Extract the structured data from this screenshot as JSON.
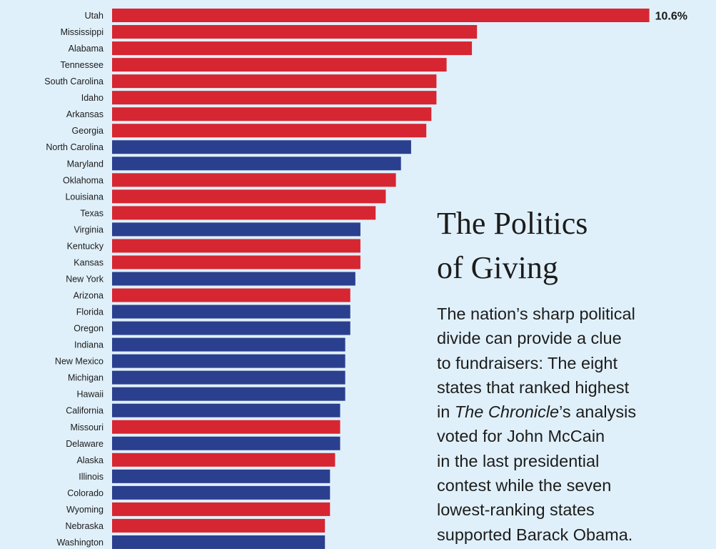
{
  "chart_data": {
    "type": "bar",
    "orientation": "horizontal",
    "categories": [
      "Utah",
      "Mississippi",
      "Alabama",
      "Tennessee",
      "South Carolina",
      "Idaho",
      "Arkansas",
      "Georgia",
      "North Carolina",
      "Maryland",
      "Oklahoma",
      "Louisiana",
      "Texas",
      "Virginia",
      "Kentucky",
      "Kansas",
      "New York",
      "Arizona",
      "Florida",
      "Oregon",
      "Indiana",
      "New Mexico",
      "Michigan",
      "Hawaii",
      "California",
      "Missouri",
      "Delaware",
      "Alaska",
      "Illinois",
      "Colorado",
      "Wyoming",
      "Nebraska",
      "Washington"
    ],
    "values": [
      10.6,
      7.2,
      7.1,
      6.6,
      6.4,
      6.4,
      6.3,
      6.2,
      5.9,
      5.7,
      5.6,
      5.4,
      5.2,
      4.9,
      4.9,
      4.9,
      4.8,
      4.7,
      4.7,
      4.7,
      4.6,
      4.6,
      4.6,
      4.6,
      4.5,
      4.5,
      4.5,
      4.4,
      4.3,
      4.3,
      4.3,
      4.2,
      4.2
    ],
    "voted": [
      "McCain",
      "McCain",
      "McCain",
      "McCain",
      "McCain",
      "McCain",
      "McCain",
      "McCain",
      "Obama",
      "Obama",
      "McCain",
      "McCain",
      "McCain",
      "Obama",
      "McCain",
      "McCain",
      "Obama",
      "McCain",
      "Obama",
      "Obama",
      "Obama",
      "Obama",
      "Obama",
      "Obama",
      "Obama",
      "McCain",
      "Obama",
      "McCain",
      "Obama",
      "Obama",
      "McCain",
      "McCain",
      "Obama"
    ],
    "value_label": "10.6%",
    "colors": {
      "McCain": "#d62631",
      "Obama": "#2b3f8f"
    }
  },
  "title_lines": [
    "The Politics",
    "of Giving"
  ],
  "blurb": {
    "line1": "The nation’s sharp political",
    "line2": "divide can provide a clue",
    "line3": "to fundraisers: The eight",
    "line4": "states that ranked highest",
    "line5_pre": "in ",
    "line5_em": "The Chronicle",
    "line5_post": "’s analysis",
    "line6": "voted for John McCain",
    "line7": "in the last presidential",
    "line8": "contest while the seven",
    "line9": "lowest-ranking states",
    "line10": "supported Barack Obama."
  }
}
